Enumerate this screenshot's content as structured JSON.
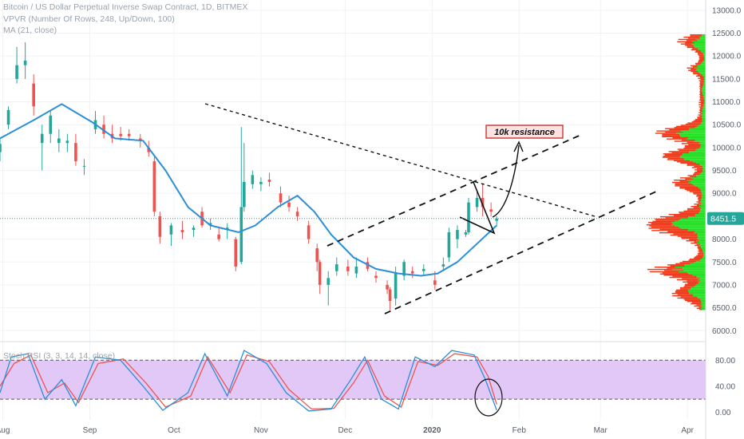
{
  "legend": {
    "symbol": "Bitcoin / US Dollar Perpetual Inverse Swap Contract, 1D, BITMEX",
    "vpvr": "VPVR (Number Of Rows, 248, Up/Down, 100)",
    "ma": "MA (21, close)",
    "stoch": "Stoch RSI (3, 3, 14, 14, close)"
  },
  "annotations": {
    "resistance_label": "10k resistance"
  },
  "colors": {
    "up": "#26a69a",
    "down": "#ef5350",
    "ma": "#2b8fd8",
    "vp_up": "#22e022",
    "vp_down": "#f03a1a",
    "osc_band": "#e1c8f7",
    "stoch_k": "#2b8fd8",
    "stoch_d": "#ef5350",
    "price_tag": "#26a69a"
  },
  "chart_data": [
    {
      "type": "candlestick",
      "title": "Bitcoin / US Dollar Perpetual Inverse Swap Contract, 1D, BITMEX",
      "current_price": "8451.5",
      "y_ticks": [
        "13000.0",
        "12500.0",
        "12000.0",
        "11500.0",
        "11000.0",
        "10500.0",
        "10000.0",
        "9500.0",
        "9000.0",
        "8500.0",
        "8000.0",
        "7500.0",
        "7000.0",
        "6500.0",
        "6000.0"
      ],
      "y_range": [
        5900,
        13050
      ],
      "x_ticks": [
        "Aug",
        "Sep",
        "Oct",
        "Nov",
        "Dec",
        "2020",
        "Feb",
        "Mar",
        "Apr"
      ],
      "candles": [
        {
          "date": "2019-07-31",
          "open": 9900,
          "high": 10200,
          "low": 9700,
          "close": 10080
        },
        {
          "date": "2019-08-03",
          "open": 10500,
          "high": 10900,
          "low": 10400,
          "close": 10820
        },
        {
          "date": "2019-08-06",
          "open": 11500,
          "high": 12200,
          "low": 11400,
          "close": 11800
        },
        {
          "date": "2019-08-09",
          "open": 11800,
          "high": 12300,
          "low": 11500,
          "close": 11900
        },
        {
          "date": "2019-08-12",
          "open": 11400,
          "high": 11600,
          "low": 10700,
          "close": 10900
        },
        {
          "date": "2019-08-15",
          "open": 10100,
          "high": 10500,
          "low": 9500,
          "close": 10300
        },
        {
          "date": "2019-08-18",
          "open": 10300,
          "high": 10800,
          "low": 10100,
          "close": 10700
        },
        {
          "date": "2019-08-21",
          "open": 10100,
          "high": 10400,
          "low": 9900,
          "close": 10200
        },
        {
          "date": "2019-08-24",
          "open": 10100,
          "high": 10300,
          "low": 9900,
          "close": 10150
        },
        {
          "date": "2019-08-27",
          "open": 10100,
          "high": 10300,
          "low": 9600,
          "close": 9700
        },
        {
          "date": "2019-08-30",
          "open": 9600,
          "high": 9750,
          "low": 9400,
          "close": 9600
        },
        {
          "date": "2019-09-03",
          "open": 10400,
          "high": 10800,
          "low": 10300,
          "close": 10600
        },
        {
          "date": "2019-09-06",
          "open": 10500,
          "high": 10700,
          "low": 10200,
          "close": 10300
        },
        {
          "date": "2019-09-09",
          "open": 10300,
          "high": 10500,
          "low": 10100,
          "close": 10200
        },
        {
          "date": "2019-09-12",
          "open": 10300,
          "high": 10450,
          "low": 10150,
          "close": 10250
        },
        {
          "date": "2019-09-15",
          "open": 10300,
          "high": 10400,
          "low": 10150,
          "close": 10250
        },
        {
          "date": "2019-09-19",
          "open": 10200,
          "high": 10300,
          "low": 10000,
          "close": 10150
        },
        {
          "date": "2019-09-22",
          "open": 10000,
          "high": 10150,
          "low": 9800,
          "close": 9900
        },
        {
          "date": "2019-09-24",
          "open": 9700,
          "high": 9800,
          "low": 8500,
          "close": 8600
        },
        {
          "date": "2019-09-26",
          "open": 8500,
          "high": 8600,
          "low": 7900,
          "close": 8050
        },
        {
          "date": "2019-09-30",
          "open": 8100,
          "high": 8350,
          "low": 7850,
          "close": 8300
        },
        {
          "date": "2019-10-04",
          "open": 8200,
          "high": 8400,
          "low": 8000,
          "close": 8150
        },
        {
          "date": "2019-10-08",
          "open": 8200,
          "high": 8300,
          "low": 8050,
          "close": 8250
        },
        {
          "date": "2019-10-11",
          "open": 8600,
          "high": 8700,
          "low": 8250,
          "close": 8300
        },
        {
          "date": "2019-10-14",
          "open": 8300,
          "high": 8450,
          "low": 8200,
          "close": 8350
        },
        {
          "date": "2019-10-17",
          "open": 8100,
          "high": 8250,
          "low": 7950,
          "close": 8000
        },
        {
          "date": "2019-10-20",
          "open": 8200,
          "high": 8350,
          "low": 8000,
          "close": 8250
        },
        {
          "date": "2019-10-23",
          "open": 8000,
          "high": 8050,
          "low": 7300,
          "close": 7400
        },
        {
          "date": "2019-10-25",
          "open": 7500,
          "high": 10450,
          "low": 7450,
          "close": 8700
        },
        {
          "date": "2019-10-26",
          "open": 8700,
          "high": 10100,
          "low": 8600,
          "close": 9250
        },
        {
          "date": "2019-10-29",
          "open": 9200,
          "high": 9500,
          "low": 9100,
          "close": 9400
        },
        {
          "date": "2019-11-01",
          "open": 9200,
          "high": 9350,
          "low": 9050,
          "close": 9250
        },
        {
          "date": "2019-11-04",
          "open": 9300,
          "high": 9450,
          "low": 9150,
          "close": 9250
        },
        {
          "date": "2019-11-08",
          "open": 9000,
          "high": 9150,
          "low": 8700,
          "close": 8800
        },
        {
          "date": "2019-11-11",
          "open": 8800,
          "high": 8950,
          "low": 8600,
          "close": 8700
        },
        {
          "date": "2019-11-14",
          "open": 8600,
          "high": 8700,
          "low": 8400,
          "close": 8500
        },
        {
          "date": "2019-11-18",
          "open": 8300,
          "high": 8400,
          "low": 7900,
          "close": 8000
        },
        {
          "date": "2019-11-21",
          "open": 7800,
          "high": 7900,
          "low": 7300,
          "close": 7500
        },
        {
          "date": "2019-11-22",
          "open": 7500,
          "high": 7550,
          "low": 6800,
          "close": 7000
        },
        {
          "date": "2019-11-25",
          "open": 7000,
          "high": 7300,
          "low": 6550,
          "close": 7150
        },
        {
          "date": "2019-11-28",
          "open": 7300,
          "high": 7600,
          "low": 7200,
          "close": 7450
        },
        {
          "date": "2019-12-02",
          "open": 7400,
          "high": 7550,
          "low": 7200,
          "close": 7300
        },
        {
          "date": "2019-12-05",
          "open": 7250,
          "high": 7600,
          "low": 7150,
          "close": 7400
        },
        {
          "date": "2019-12-09",
          "open": 7500,
          "high": 7600,
          "low": 7300,
          "close": 7350
        },
        {
          "date": "2019-12-12",
          "open": 7200,
          "high": 7300,
          "low": 7050,
          "close": 7150
        },
        {
          "date": "2019-12-16",
          "open": 7000,
          "high": 7100,
          "low": 6800,
          "close": 6900
        },
        {
          "date": "2019-12-17",
          "open": 6900,
          "high": 6950,
          "low": 6450,
          "close": 6650
        },
        {
          "date": "2019-12-19",
          "open": 6700,
          "high": 7400,
          "low": 6550,
          "close": 7250
        },
        {
          "date": "2019-12-22",
          "open": 7200,
          "high": 7550,
          "low": 7100,
          "close": 7500
        },
        {
          "date": "2019-12-25",
          "open": 7300,
          "high": 7400,
          "low": 7150,
          "close": 7250
        },
        {
          "date": "2019-12-29",
          "open": 7300,
          "high": 7450,
          "low": 7200,
          "close": 7350
        },
        {
          "date": "2020-01-02",
          "open": 7100,
          "high": 7300,
          "low": 6900,
          "close": 7000
        },
        {
          "date": "2020-01-05",
          "open": 7400,
          "high": 7600,
          "low": 7300,
          "close": 7450
        },
        {
          "date": "2020-01-07",
          "open": 7600,
          "high": 8250,
          "low": 7500,
          "close": 8150
        },
        {
          "date": "2020-01-10",
          "open": 8000,
          "high": 8300,
          "low": 7800,
          "close": 8200
        },
        {
          "date": "2020-01-13",
          "open": 8100,
          "high": 8200,
          "low": 8050,
          "close": 8150
        },
        {
          "date": "2020-01-14",
          "open": 8150,
          "high": 8900,
          "low": 8100,
          "close": 8800
        },
        {
          "date": "2020-01-17",
          "open": 8700,
          "high": 9050,
          "low": 8600,
          "close": 8900
        },
        {
          "date": "2020-01-19",
          "open": 8900,
          "high": 9200,
          "low": 8500,
          "close": 8700
        },
        {
          "date": "2020-01-22",
          "open": 8650,
          "high": 8800,
          "low": 8500,
          "close": 8600
        },
        {
          "date": "2020-01-24",
          "open": 8400,
          "high": 8500,
          "low": 8300,
          "close": 8450
        }
      ],
      "ma21": [
        {
          "date": "2019-07-31",
          "value": 10200
        },
        {
          "date": "2019-08-12",
          "value": 10600
        },
        {
          "date": "2019-08-22",
          "value": 10950
        },
        {
          "date": "2019-09-02",
          "value": 10550
        },
        {
          "date": "2019-09-10",
          "value": 10200
        },
        {
          "date": "2019-09-20",
          "value": 10150
        },
        {
          "date": "2019-09-28",
          "value": 9500
        },
        {
          "date": "2019-10-06",
          "value": 8700
        },
        {
          "date": "2019-10-14",
          "value": 8300
        },
        {
          "date": "2019-10-24",
          "value": 8150
        },
        {
          "date": "2019-10-30",
          "value": 8300
        },
        {
          "date": "2019-11-07",
          "value": 8700
        },
        {
          "date": "2019-11-14",
          "value": 8950
        },
        {
          "date": "2019-11-20",
          "value": 8600
        },
        {
          "date": "2019-11-26",
          "value": 8100
        },
        {
          "date": "2019-12-04",
          "value": 7600
        },
        {
          "date": "2019-12-12",
          "value": 7350
        },
        {
          "date": "2019-12-20",
          "value": 7250
        },
        {
          "date": "2019-12-28",
          "value": 7200
        },
        {
          "date": "2020-01-03",
          "value": 7250
        },
        {
          "date": "2020-01-10",
          "value": 7500
        },
        {
          "date": "2020-01-17",
          "value": 7900
        },
        {
          "date": "2020-01-24",
          "value": 8300
        }
      ]
    },
    {
      "type": "line",
      "title": "Stoch RSI (3, 3, 14, 14, close)",
      "y_ticks": [
        "80.00",
        "40.00",
        "0.00"
      ],
      "y_range": [
        -8,
        100
      ],
      "band": [
        20,
        80
      ],
      "series": [
        {
          "name": "K",
          "values": [
            {
              "date": "2019-07-31",
              "value": 30
            },
            {
              "date": "2019-08-04",
              "value": 85
            },
            {
              "date": "2019-08-10",
              "value": 90
            },
            {
              "date": "2019-08-16",
              "value": 20
            },
            {
              "date": "2019-08-22",
              "value": 50
            },
            {
              "date": "2019-08-27",
              "value": 10
            },
            {
              "date": "2019-09-03",
              "value": 85
            },
            {
              "date": "2019-09-12",
              "value": 80
            },
            {
              "date": "2019-09-20",
              "value": 40
            },
            {
              "date": "2019-09-27",
              "value": 3
            },
            {
              "date": "2019-10-06",
              "value": 30
            },
            {
              "date": "2019-10-12",
              "value": 90
            },
            {
              "date": "2019-10-20",
              "value": 25
            },
            {
              "date": "2019-10-26",
              "value": 95
            },
            {
              "date": "2019-11-03",
              "value": 75
            },
            {
              "date": "2019-11-10",
              "value": 30
            },
            {
              "date": "2019-11-18",
              "value": 2
            },
            {
              "date": "2019-11-26",
              "value": 5
            },
            {
              "date": "2019-12-03",
              "value": 50
            },
            {
              "date": "2019-12-08",
              "value": 85
            },
            {
              "date": "2019-12-14",
              "value": 20
            },
            {
              "date": "2019-12-20",
              "value": 5
            },
            {
              "date": "2019-12-26",
              "value": 85
            },
            {
              "date": "2020-01-02",
              "value": 70
            },
            {
              "date": "2020-01-08",
              "value": 95
            },
            {
              "date": "2020-01-16",
              "value": 88
            },
            {
              "date": "2020-01-20",
              "value": 50
            },
            {
              "date": "2020-01-24",
              "value": 3
            }
          ]
        },
        {
          "name": "D",
          "values": [
            {
              "date": "2019-07-31",
              "value": 40
            },
            {
              "date": "2019-08-05",
              "value": 75
            },
            {
              "date": "2019-08-11",
              "value": 88
            },
            {
              "date": "2019-08-17",
              "value": 30
            },
            {
              "date": "2019-08-23",
              "value": 45
            },
            {
              "date": "2019-08-28",
              "value": 15
            },
            {
              "date": "2019-09-04",
              "value": 75
            },
            {
              "date": "2019-09-13",
              "value": 82
            },
            {
              "date": "2019-09-21",
              "value": 45
            },
            {
              "date": "2019-09-28",
              "value": 8
            },
            {
              "date": "2019-10-07",
              "value": 25
            },
            {
              "date": "2019-10-13",
              "value": 85
            },
            {
              "date": "2019-10-21",
              "value": 30
            },
            {
              "date": "2019-10-27",
              "value": 88
            },
            {
              "date": "2019-11-04",
              "value": 78
            },
            {
              "date": "2019-11-11",
              "value": 35
            },
            {
              "date": "2019-11-19",
              "value": 5
            },
            {
              "date": "2019-11-27",
              "value": 6
            },
            {
              "date": "2019-12-04",
              "value": 45
            },
            {
              "date": "2019-12-09",
              "value": 80
            },
            {
              "date": "2019-12-15",
              "value": 25
            },
            {
              "date": "2019-12-21",
              "value": 8
            },
            {
              "date": "2019-12-27",
              "value": 78
            },
            {
              "date": "2020-01-03",
              "value": 72
            },
            {
              "date": "2020-01-09",
              "value": 90
            },
            {
              "date": "2020-01-17",
              "value": 85
            },
            {
              "date": "2020-01-21",
              "value": 55
            },
            {
              "date": "2020-01-24",
              "value": 12
            }
          ]
        }
      ]
    }
  ]
}
